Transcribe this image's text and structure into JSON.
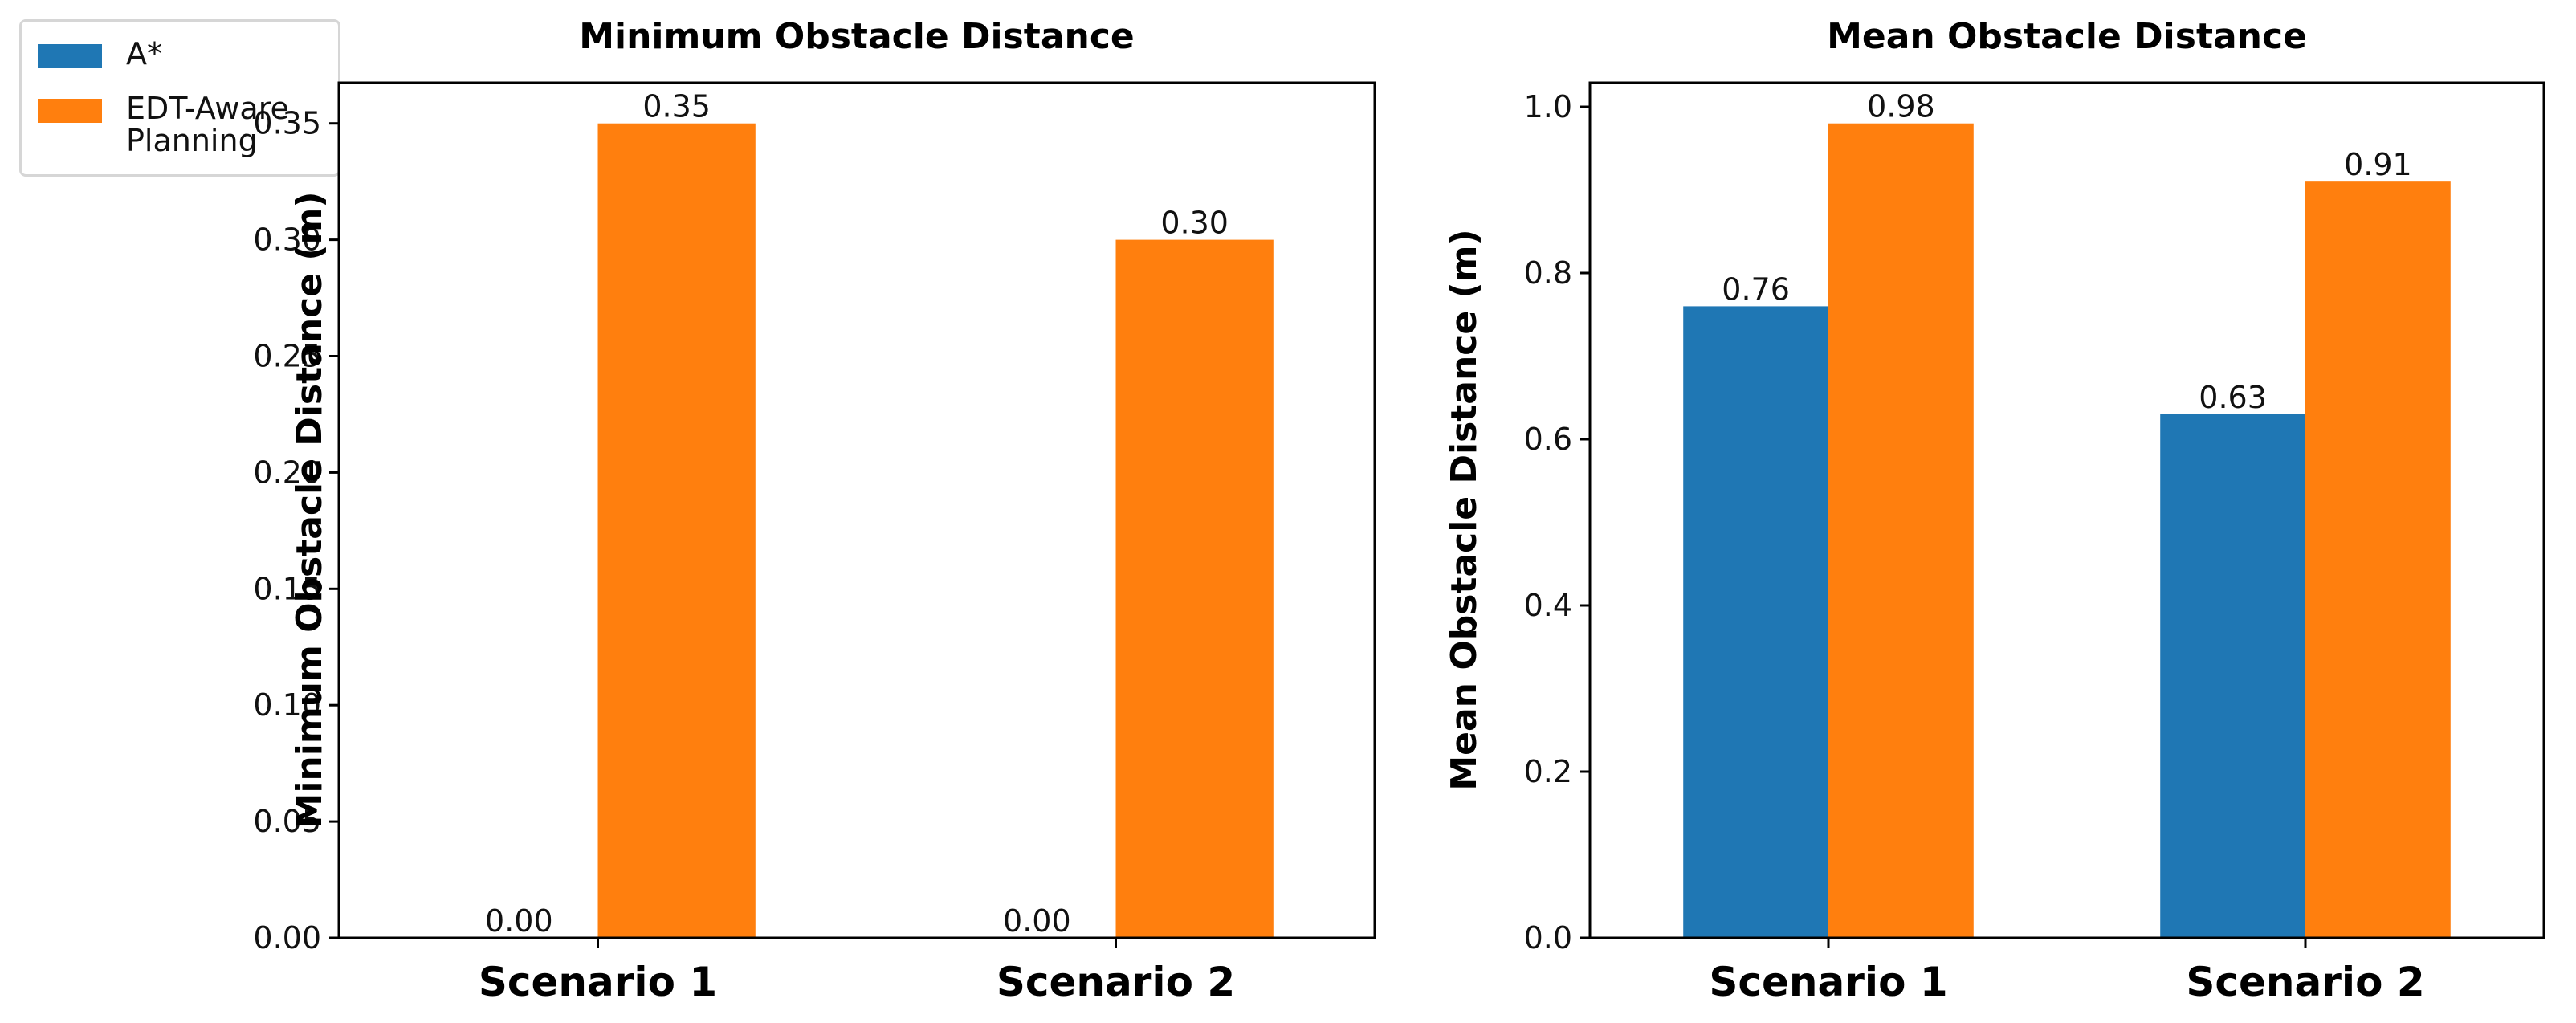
{
  "legend": {
    "items": [
      {
        "label": "A*",
        "color": "#1f77b4"
      },
      {
        "label": "EDT-Aware\nPlanning",
        "color": "#ff7f0e"
      }
    ]
  },
  "chart_data": [
    {
      "type": "bar",
      "title": "Minimum Obstacle Distance",
      "xlabel": "",
      "ylabel": "Minimum Obstacle Distance (m)",
      "categories": [
        "Scenario 1",
        "Scenario 2"
      ],
      "ylim": [
        0,
        0.3675
      ],
      "yticks": [
        "0.00",
        "0.05",
        "0.10",
        "0.15",
        "0.20",
        "0.25",
        "0.30",
        "0.35"
      ],
      "series": [
        {
          "name": "A*",
          "color": "#1f77b4",
          "values": [
            0.0,
            0.0
          ],
          "labels": [
            "0.00",
            "0.00"
          ]
        },
        {
          "name": "EDT-Aware Planning",
          "color": "#ff7f0e",
          "values": [
            0.35,
            0.3
          ],
          "labels": [
            "0.35",
            "0.30"
          ]
        }
      ],
      "grid": false
    },
    {
      "type": "bar",
      "title": "Mean Obstacle Distance",
      "xlabel": "",
      "ylabel": "Mean Obstacle Distance (m)",
      "categories": [
        "Scenario 1",
        "Scenario 2"
      ],
      "ylim": [
        0,
        1.029
      ],
      "yticks": [
        "0.0",
        "0.2",
        "0.4",
        "0.6",
        "0.8",
        "1.0"
      ],
      "series": [
        {
          "name": "A*",
          "color": "#1f77b4",
          "values": [
            0.76,
            0.63
          ],
          "labels": [
            "0.76",
            "0.63"
          ]
        },
        {
          "name": "EDT-Aware Planning",
          "color": "#ff7f0e",
          "values": [
            0.98,
            0.91
          ],
          "labels": [
            "0.98",
            "0.91"
          ]
        }
      ],
      "grid": false
    }
  ]
}
